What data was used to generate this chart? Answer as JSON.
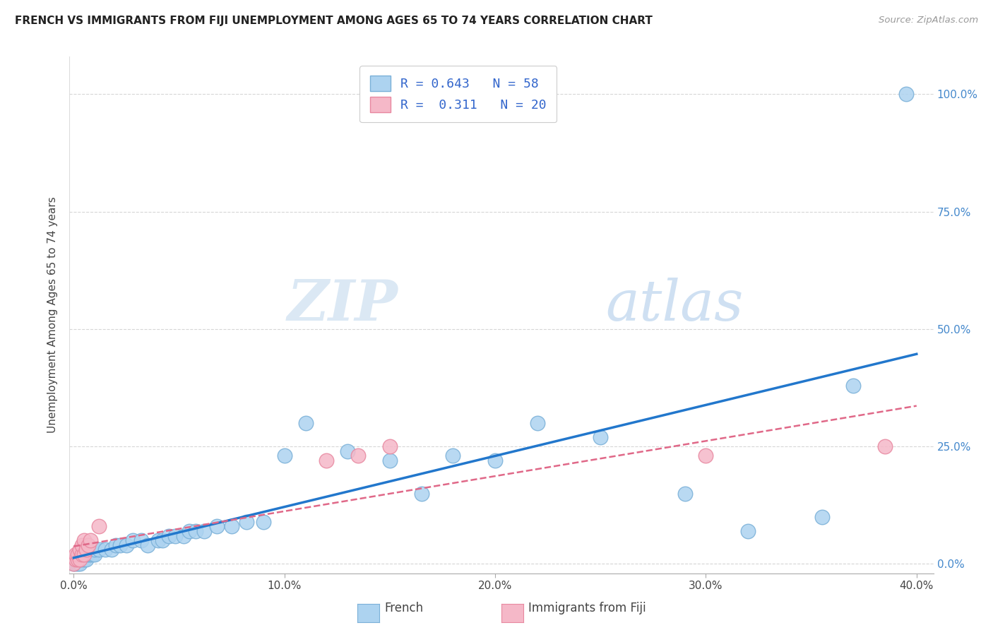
{
  "title": "FRENCH VS IMMIGRANTS FROM FIJI UNEMPLOYMENT AMONG AGES 65 TO 74 YEARS CORRELATION CHART",
  "source": "Source: ZipAtlas.com",
  "ylabel": "Unemployment Among Ages 65 to 74 years",
  "xlim": [
    -0.002,
    0.408
  ],
  "ylim": [
    -0.02,
    1.08
  ],
  "xticks": [
    0.0,
    0.1,
    0.2,
    0.3,
    0.4
  ],
  "xticklabels": [
    "0.0%",
    "10.0%",
    "20.0%",
    "30.0%",
    "40.0%"
  ],
  "yticks": [
    0.0,
    0.25,
    0.5,
    0.75,
    1.0
  ],
  "yticklabels": [
    "0.0%",
    "25.0%",
    "50.0%",
    "75.0%",
    "100.0%"
  ],
  "watermark_zip": "ZIP",
  "watermark_atlas": "atlas",
  "french_R": 0.643,
  "french_N": 58,
  "fiji_R": 0.311,
  "fiji_N": 20,
  "french_color": "#add3f0",
  "fiji_color": "#f5b8c8",
  "french_edge": "#7ab0d8",
  "fiji_edge": "#e888a0",
  "trend_french_color": "#2277cc",
  "trend_fiji_color": "#e06888",
  "grid_color": "#cccccc",
  "french_x": [
    0.0,
    0.001,
    0.001,
    0.001,
    0.002,
    0.002,
    0.002,
    0.003,
    0.003,
    0.003,
    0.004,
    0.004,
    0.005,
    0.005,
    0.006,
    0.006,
    0.007,
    0.007,
    0.008,
    0.008,
    0.009,
    0.01,
    0.01,
    0.012,
    0.015,
    0.018,
    0.02,
    0.022,
    0.025,
    0.028,
    0.032,
    0.035,
    0.04,
    0.042,
    0.045,
    0.048,
    0.052,
    0.055,
    0.058,
    0.062,
    0.068,
    0.075,
    0.082,
    0.09,
    0.1,
    0.11,
    0.13,
    0.15,
    0.165,
    0.18,
    0.2,
    0.22,
    0.25,
    0.29,
    0.32,
    0.355,
    0.37,
    0.395
  ],
  "french_y": [
    0.0,
    0.0,
    0.01,
    0.01,
    0.0,
    0.01,
    0.02,
    0.0,
    0.01,
    0.02,
    0.01,
    0.02,
    0.01,
    0.02,
    0.01,
    0.02,
    0.02,
    0.03,
    0.02,
    0.03,
    0.02,
    0.02,
    0.03,
    0.03,
    0.03,
    0.03,
    0.04,
    0.04,
    0.04,
    0.05,
    0.05,
    0.04,
    0.05,
    0.05,
    0.06,
    0.06,
    0.06,
    0.07,
    0.07,
    0.07,
    0.08,
    0.08,
    0.09,
    0.09,
    0.23,
    0.3,
    0.24,
    0.22,
    0.15,
    0.23,
    0.22,
    0.3,
    0.27,
    0.15,
    0.07,
    0.1,
    0.38,
    1.0
  ],
  "fiji_x": [
    0.0,
    0.001,
    0.001,
    0.002,
    0.002,
    0.003,
    0.003,
    0.004,
    0.004,
    0.005,
    0.005,
    0.006,
    0.007,
    0.008,
    0.012,
    0.12,
    0.135,
    0.15,
    0.3,
    0.385
  ],
  "fiji_y": [
    0.0,
    0.01,
    0.02,
    0.01,
    0.02,
    0.01,
    0.03,
    0.02,
    0.04,
    0.02,
    0.05,
    0.03,
    0.04,
    0.05,
    0.08,
    0.22,
    0.23,
    0.25,
    0.23,
    0.25
  ],
  "legend_label_french": "R = 0.643   N = 58",
  "legend_label_fiji": "R =  0.311   N = 20",
  "bottom_label_french": "French",
  "bottom_label_fiji": "Immigrants from Fiji"
}
